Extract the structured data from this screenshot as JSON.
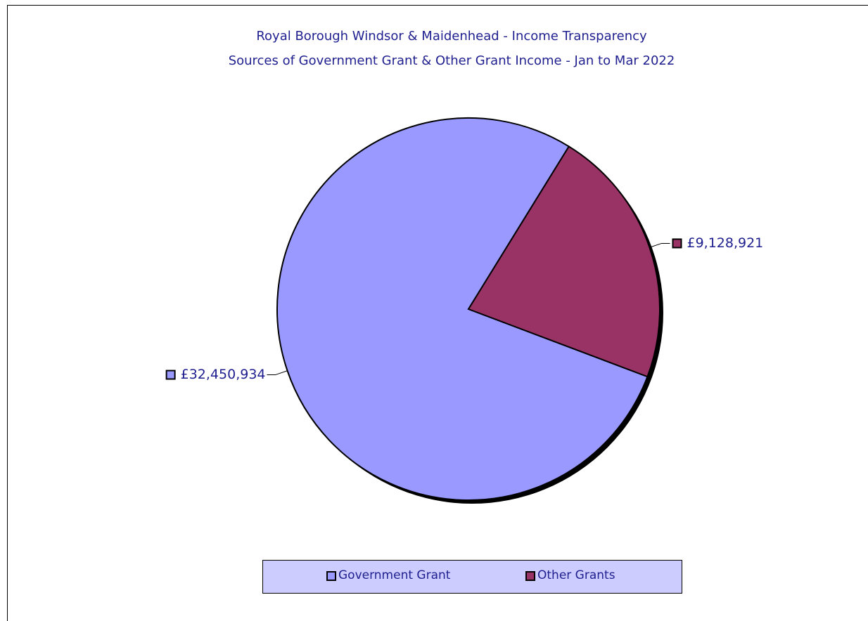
{
  "chart_data": {
    "type": "pie",
    "title": "Royal Borough Windsor & Maidenhead - Income Transparency",
    "subtitle": "Sources of Government Grant & Other Grant Income - Jan to Mar 2022",
    "categories": [
      "Government Grant",
      "Other Grants"
    ],
    "values": [
      32450934,
      9128921
    ],
    "value_labels": [
      "£32,450,934",
      "£9,128,921"
    ],
    "colors": [
      "#9999ff",
      "#993366"
    ],
    "legend": "bottom"
  }
}
